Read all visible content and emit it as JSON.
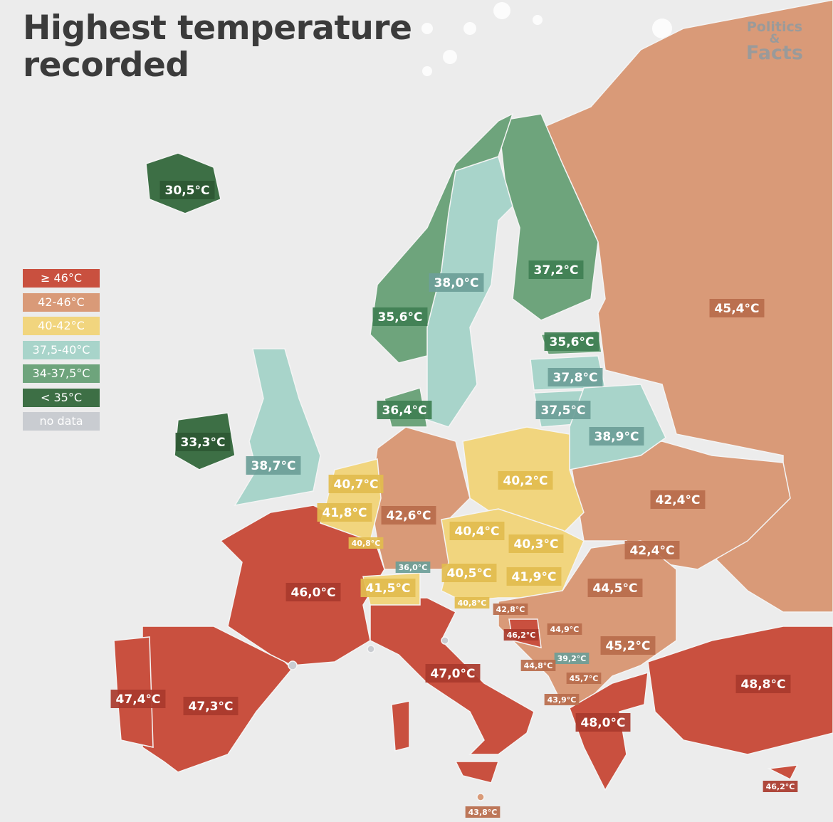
{
  "header": {
    "title": "Highest temperature recorded"
  },
  "logo": {
    "line1": "Politics",
    "line2": "&",
    "line3": "Facts"
  },
  "legend": [
    "≥ 46°C",
    "42-46°C",
    "40-42°C",
    "37,5-40°C",
    "34-37,5°C",
    "< 35°C",
    "no data"
  ],
  "map_labels": [
    "30,5°C",
    "38,0°C",
    "37,2°C",
    "35,6°C",
    "45,4°C",
    "35,6°C",
    "37,8°C",
    "36,4°C",
    "37,5°C",
    "38,9°C",
    "33,3°C",
    "38,7°C",
    "40,7°C",
    "40,2°C",
    "42,4°C",
    "41,8°C",
    "42,6°C",
    "40,4°C",
    "40,8°C",
    "40,3°C",
    "42,4°C",
    "36,0°C",
    "40,5°C",
    "41,9°C",
    "41,5°C",
    "46,0°C",
    "44,5°C",
    "40,8°C",
    "42,8°C",
    "44,9°C",
    "46,2°C",
    "45,2°C",
    "39,2°C",
    "44,8°C",
    "45,7°C",
    "47,0°C",
    "48,8°C",
    "47,4°C",
    "47,3°C",
    "43,9°C",
    "48,0°C",
    "46,2°C",
    "43,8°C"
  ]
}
